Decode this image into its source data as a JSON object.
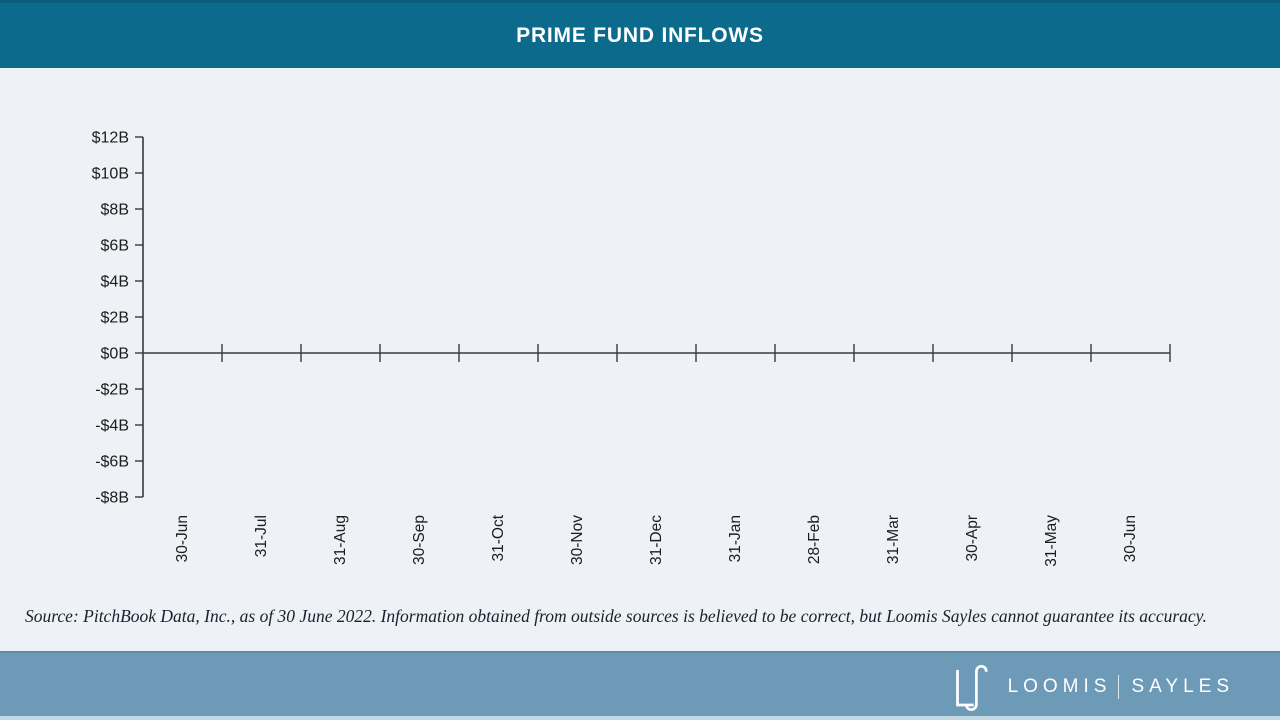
{
  "header": {
    "title": "PRIME FUND INFLOWS",
    "bg_color": "#0c6b8d"
  },
  "chart_data": {
    "type": "bar",
    "title": "PRIME FUND INFLOWS",
    "categories": [
      "30-Jun",
      "31-Jul",
      "31-Aug",
      "30-Sep",
      "31-Oct",
      "30-Nov",
      "31-Dec",
      "31-Jan",
      "28-Feb",
      "31-Mar",
      "30-Apr",
      "31-May",
      "30-Jun"
    ],
    "values": [
      0,
      0,
      0,
      0,
      0,
      0,
      0,
      0,
      0,
      0,
      0,
      0,
      0
    ],
    "xlabel": "",
    "ylabel": "",
    "y_tick_labels": [
      "$12B",
      "$10B",
      "$8B",
      "$6B",
      "$4B",
      "$2B",
      "$0B",
      "-$2B",
      "-$4B",
      "-$6B",
      "-$8B"
    ],
    "ylim": [
      -8,
      12
    ],
    "y_step": 2,
    "grid": false,
    "legend": false,
    "axis_color": "#3a3a3a",
    "background_color": "#eef1f6"
  },
  "source_note": "Source: PitchBook Data, Inc., as of 30 June 2022. Information obtained from outside sources is believed to be correct, but Loomis Sayles cannot guarantee its accuracy.",
  "footer": {
    "bg_color": "#6d9ab6",
    "logo_icon": "ls-monogram",
    "brand_word_1": "LOOMIS",
    "brand_word_2": "SAYLES"
  }
}
